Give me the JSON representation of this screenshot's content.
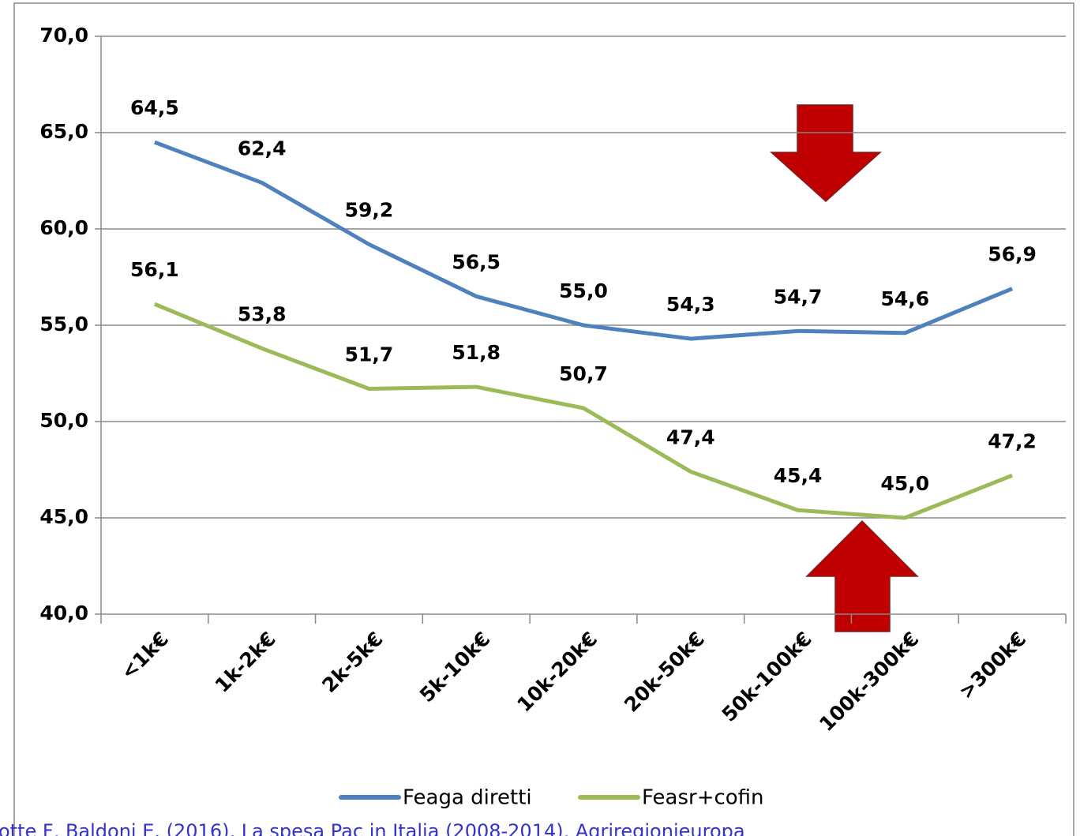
{
  "chart_data": {
    "type": "line",
    "categories": [
      "<1k€",
      "1k-2k€",
      "2k-5k€",
      "5k-10k€",
      "10k-20k€",
      "20k-50k€",
      "50k-100k€",
      "100k-300k€",
      ">300k€"
    ],
    "series": [
      {
        "name": "Feaga diretti",
        "color": "#4f81bd",
        "values": [
          64.5,
          62.4,
          59.2,
          56.5,
          55.0,
          54.3,
          54.7,
          54.6,
          56.9
        ],
        "value_labels": [
          "64,5",
          "62,4",
          "59,2",
          "56,5",
          "55,0",
          "54,3",
          "54,7",
          "54,6",
          "56,9"
        ]
      },
      {
        "name": "Feasr+cofin",
        "color": "#9bbb59",
        "values": [
          56.1,
          53.8,
          51.7,
          51.8,
          50.7,
          47.4,
          45.4,
          45.0,
          47.2
        ],
        "value_labels": [
          "56,1",
          "53,8",
          "51,7",
          "51,8",
          "50,7",
          "47,4",
          "45,4",
          "45,0",
          "47,2"
        ]
      }
    ],
    "ylim": [
      40,
      70
    ],
    "yticks": [
      {
        "value": 40,
        "label": "40,0"
      },
      {
        "value": 45,
        "label": "45,0"
      },
      {
        "value": 50,
        "label": "50,0"
      },
      {
        "value": 55,
        "label": "55,0"
      },
      {
        "value": 60,
        "label": "60,0"
      },
      {
        "value": 65,
        "label": "65,0"
      },
      {
        "value": 70,
        "label": "70,0"
      }
    ],
    "grid": true,
    "legend": "bottom",
    "source": "otte F, Baldoni E. (2016), La spesa Pac in Italia (2008-2014), Agriregionieuropa"
  }
}
